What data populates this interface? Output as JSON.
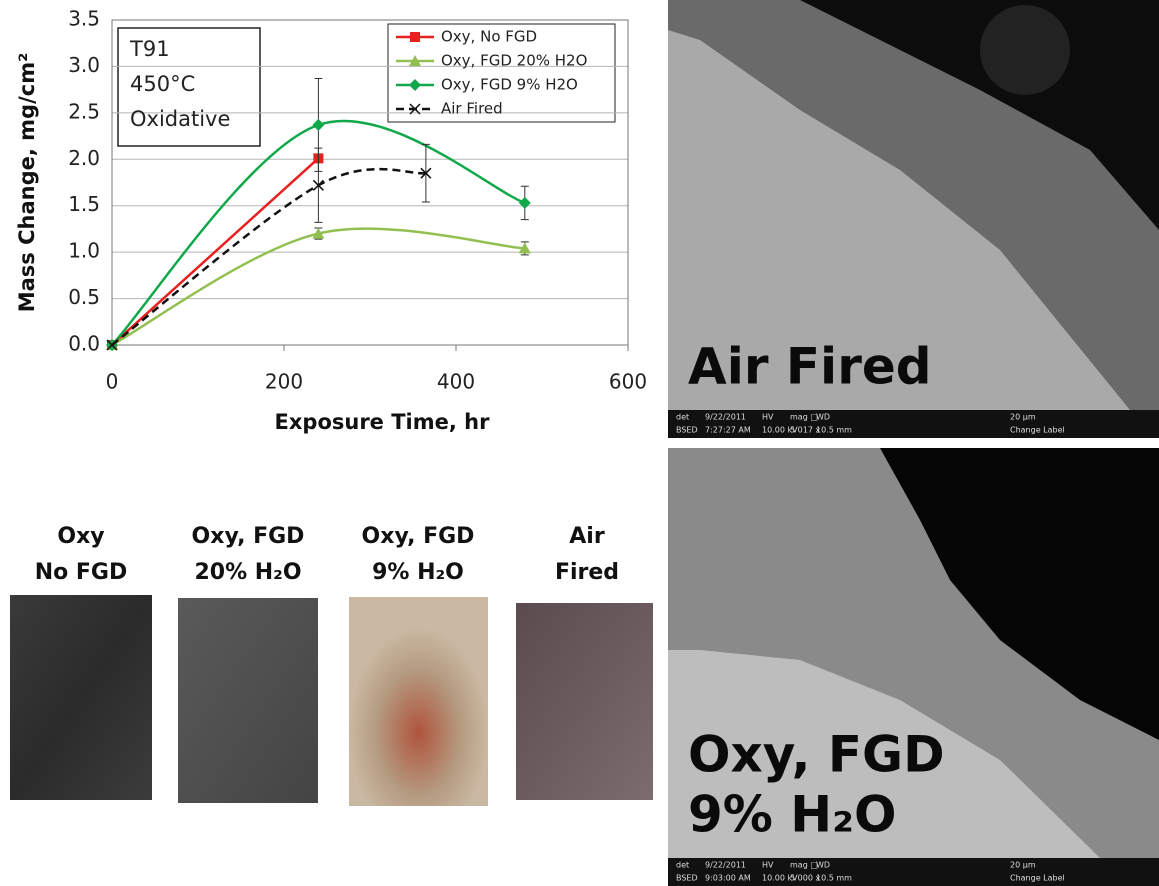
{
  "chart_data": {
    "type": "line",
    "annotation": [
      "T91",
      "450°C",
      "Oxidative"
    ],
    "x_label": "Exposure Time, hr",
    "y_label": "Mass Change, mg/cm²",
    "xlim": [
      0,
      600
    ],
    "xticks": [
      0,
      200,
      400,
      600
    ],
    "ylim": [
      0,
      3.5
    ],
    "yticks": [
      {
        "value": 0,
        "label": "0.0"
      },
      0.5,
      {
        "value": 1,
        "label": "1.0"
      },
      1.5,
      {
        "value": 2,
        "label": "2.0"
      },
      2.5,
      {
        "value": 3,
        "label": "3.0"
      },
      3.5
    ],
    "grid": true,
    "legend": "upper right",
    "series": [
      {
        "name": "Oxy, No FGD",
        "color": "#e8201e",
        "marker": "square",
        "linestyle": "solid",
        "x": [
          0,
          240
        ],
        "values": [
          0,
          2.01
        ],
        "errors": [
          null,
          null
        ]
      },
      {
        "name": "Oxy, FGD 20% H2O",
        "color": "#92c050",
        "marker": "triangle",
        "linestyle": "solid",
        "x": [
          0,
          240,
          480
        ],
        "values": [
          0,
          1.2,
          1.04
        ],
        "errors": [
          null,
          0.06,
          0.07
        ]
      },
      {
        "name": "Oxy, FGD 9% H2O",
        "color": "#10a84a",
        "marker": "diamond",
        "linestyle": "solid",
        "x": [
          0,
          240,
          480
        ],
        "values": [
          0,
          2.37,
          1.53
        ],
        "errors": [
          null,
          0.5,
          0.18
        ]
      },
      {
        "name": "Air Fired",
        "color": "#111111",
        "marker": "x",
        "linestyle": "dashed",
        "x": [
          0,
          240,
          365
        ],
        "values": [
          0,
          1.72,
          1.85
        ],
        "errors": [
          null,
          0.4,
          0.31
        ]
      }
    ]
  },
  "samples": [
    {
      "line1": "Oxy",
      "line2": "No FGD"
    },
    {
      "line1": "Oxy, FGD",
      "line2": "20% H₂O"
    },
    {
      "line1": "Oxy, FGD",
      "line2": "9% H₂O"
    },
    {
      "line1": "Air",
      "line2": "Fired"
    }
  ],
  "micrographs": [
    {
      "label": [
        "Air Fired"
      ],
      "info": [
        "det",
        "BSED",
        "9/22/2011",
        "7:27:27 AM",
        "HV",
        "10.00 kV",
        "mag □",
        "5 017 x",
        "WD",
        "10.5 mm",
        "20 µm",
        "Change Label"
      ]
    },
    {
      "label": [
        "Oxy, FGD",
        "9% H₂O"
      ],
      "info": [
        "det",
        "BSED",
        "9/22/2011",
        "9:03:00 AM",
        "HV",
        "10.00 kV",
        "mag □",
        "5 000 x",
        "WD",
        "10.5 mm",
        "20 µm",
        "Change Label"
      ]
    }
  ]
}
